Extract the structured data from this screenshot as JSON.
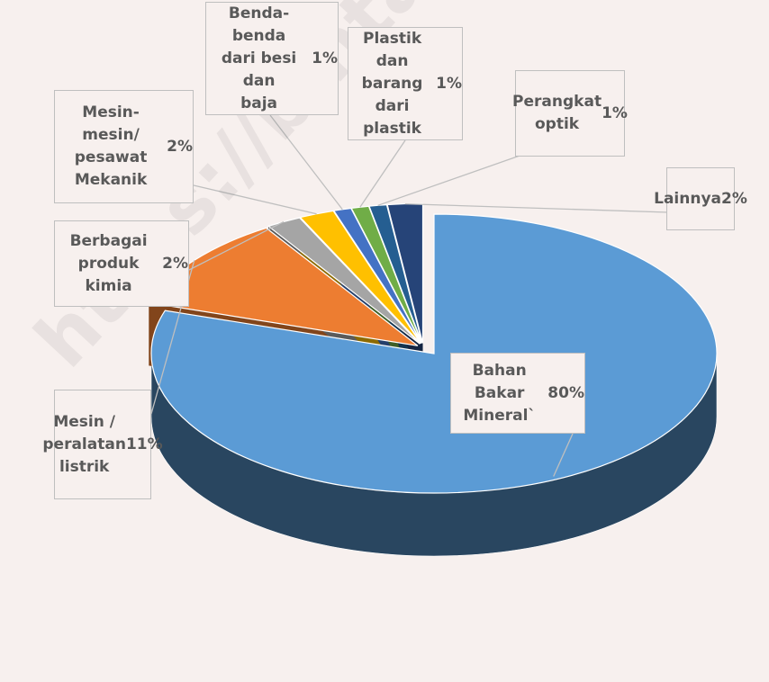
{
  "chart_data": {
    "type": "pie",
    "style": "3d-exploded",
    "slices": [
      {
        "label": "Bahan Bakar\nMineral`",
        "value": 80,
        "value_label": "80%",
        "color": "#5b9bd5"
      },
      {
        "label": "Mesin  /\nperalatan\nlistrik",
        "value": 11,
        "value_label": "11%",
        "color": "#ed7d31"
      },
      {
        "label": "Berbagai\nproduk kimia",
        "value": 2,
        "value_label": "2%",
        "color": "#a5a5a5"
      },
      {
        "label": "Mesin-mesin/\npesawat\nMekanik",
        "value": 2,
        "value_label": "2%",
        "color": "#ffc000"
      },
      {
        "label": "Benda-benda\ndari besi dan\nbaja",
        "value": 1,
        "value_label": "1%",
        "color": "#4472c4"
      },
      {
        "label": "Plastik dan\nbarang dari\nplastik",
        "value": 1,
        "value_label": "1%",
        "color": "#70ad47"
      },
      {
        "label": "Perangkat\noptik",
        "value": 1,
        "value_label": "1%",
        "color": "#255e91"
      },
      {
        "label": "Lainnya",
        "value": 2,
        "value_label": "2%",
        "color": "#264478"
      }
    ]
  },
  "watermark": "https://bintankab.bps.go.id"
}
